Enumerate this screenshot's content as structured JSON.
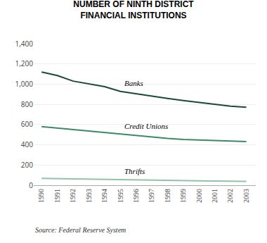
{
  "chart_data": {
    "type": "line",
    "title": "NUMBER OF NINTH DISTRICT\nFINANCIAL INSTITUTIONS",
    "x": [
      1990,
      1991,
      1992,
      1993,
      1994,
      1995,
      1996,
      1997,
      1998,
      1999,
      2000,
      2001,
      2002,
      2003
    ],
    "series": [
      {
        "name": "Banks",
        "color": "#1a4a35",
        "values": [
          1120,
          1085,
          1030,
          1000,
          975,
          928,
          905,
          878,
          858,
          838,
          818,
          798,
          782,
          772
        ]
      },
      {
        "name": "Credit Unions",
        "color": "#3a8a62",
        "values": [
          580,
          565,
          550,
          535,
          518,
          503,
          490,
          473,
          463,
          453,
          448,
          443,
          438,
          432
        ]
      },
      {
        "name": "Thrifts",
        "color": "#90c4a8",
        "values": [
          68,
          65,
          62,
          59,
          56,
          53,
          51,
          49,
          47,
          45,
          43,
          42,
          41,
          39
        ]
      }
    ],
    "xlim": [
      1989.5,
      2003.6
    ],
    "xticks": [
      1990,
      1991,
      1992,
      1993,
      1994,
      1995,
      1996,
      1997,
      1998,
      1999,
      2000,
      2001,
      2002,
      2003
    ],
    "ylim": [
      0,
      1400
    ],
    "yticks": [
      0,
      200,
      400,
      600,
      800,
      {
        "value": 1000,
        "label": "1,000"
      },
      {
        "value": 1200,
        "label": "1,200"
      },
      {
        "value": 1400,
        "label": "1,400"
      }
    ],
    "grid": true,
    "annotations": [
      "Source: Federal Reserve System"
    ]
  }
}
